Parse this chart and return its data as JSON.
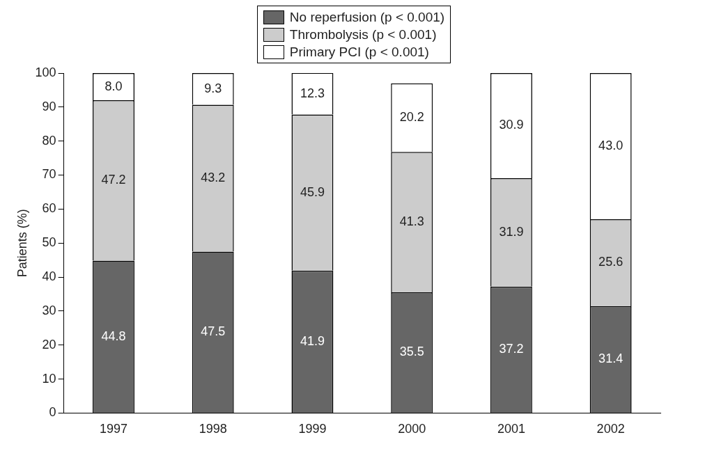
{
  "chart_data": {
    "type": "bar",
    "stacked": true,
    "ylabel": "Patients (%)",
    "categories": [
      "1997",
      "1998",
      "1999",
      "2000",
      "2001",
      "2002"
    ],
    "series": [
      {
        "name": "No reperfusion (p < 0.001)",
        "color": "#666666",
        "values": [
          44.8,
          47.5,
          41.9,
          35.5,
          37.2,
          31.4
        ],
        "value_labels": [
          "44.8",
          "47.5",
          "41.9",
          "35.5",
          "37.2",
          "31.4"
        ]
      },
      {
        "name": "Thrombolysis (p < 0.001)",
        "color": "#cccccc",
        "values": [
          47.2,
          43.2,
          45.9,
          41.3,
          31.9,
          25.6
        ],
        "value_labels": [
          "47.2",
          "43.2",
          "45.9",
          "41.3",
          "31.9",
          "25.6"
        ]
      },
      {
        "name": "Primary PCI (p < 0.001)",
        "color": "#ffffff",
        "values": [
          8.0,
          9.3,
          12.3,
          20.2,
          30.9,
          43.0
        ],
        "value_labels": [
          "8.0",
          "9.3",
          "12.3",
          "20.2",
          "30.9",
          "43.0"
        ]
      }
    ],
    "ylim": [
      0,
      100
    ],
    "yticks": [
      0,
      10,
      20,
      30,
      40,
      50,
      60,
      70,
      80,
      90,
      100
    ],
    "grid": false,
    "legend": "top"
  }
}
